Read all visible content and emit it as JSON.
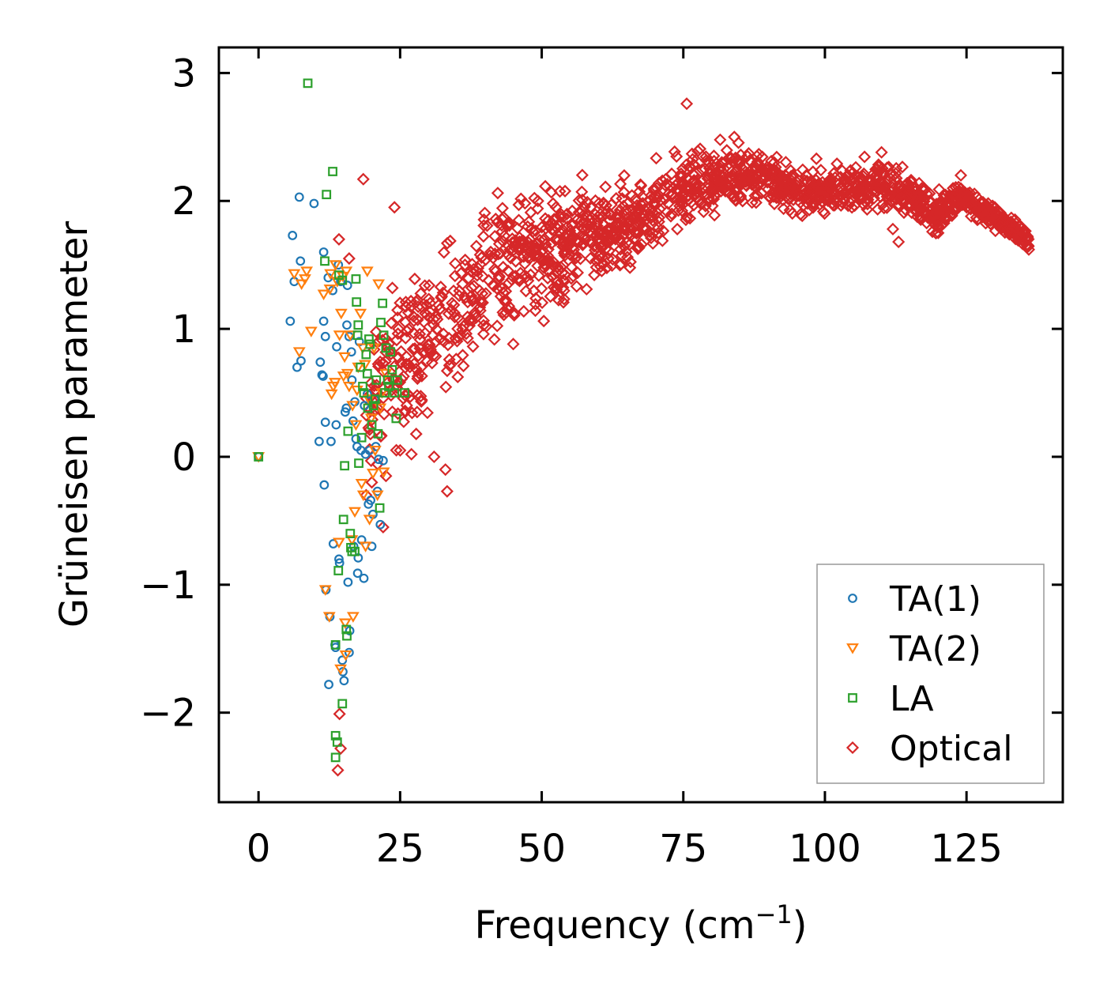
{
  "chart_data": {
    "type": "scatter",
    "title": "",
    "xlabel": "Frequency (cm",
    "xlabel_superscript": "−1",
    "xlabel_suffix": ")",
    "ylabel": "Grüneisen parameter",
    "xlim": [
      -7,
      142
    ],
    "ylim": [
      -2.7,
      3.2
    ],
    "x_ticks": [
      0,
      25,
      50,
      75,
      100,
      125
    ],
    "x_tick_labels": [
      "0",
      "25",
      "50",
      "75",
      "100",
      "125"
    ],
    "y_ticks": [
      -2,
      -1,
      0,
      1,
      2,
      3
    ],
    "y_tick_labels": [
      "−2",
      "−1",
      "0",
      "1",
      "2",
      "3"
    ],
    "grid": false,
    "legend_position": "bottom-right",
    "series": [
      {
        "name": "TA(1)",
        "marker": "circle",
        "color": "#1f77b4",
        "points": [
          [
            0,
            0
          ],
          [
            5.6,
            1.06
          ],
          [
            6,
            1.73
          ],
          [
            6.3,
            1.37
          ],
          [
            6.8,
            0.7
          ],
          [
            7.2,
            2.03
          ],
          [
            7.4,
            1.53
          ],
          [
            7.5,
            0.75
          ],
          [
            9.8,
            1.98
          ],
          [
            10.7,
            0.12
          ],
          [
            10.9,
            0.74
          ],
          [
            11.2,
            0.64
          ],
          [
            11.4,
            0.63
          ],
          [
            11.6,
            -0.22
          ],
          [
            11.8,
            0.27
          ],
          [
            11.5,
            1.06
          ],
          [
            11.8,
            0.94
          ],
          [
            11.5,
            1.6
          ],
          [
            11.9,
            -1.04
          ],
          [
            12.3,
            1.4
          ],
          [
            12.6,
            -1.25
          ],
          [
            12.4,
            -1.78
          ],
          [
            12.8,
            0.12
          ],
          [
            13.1,
            1.3
          ],
          [
            13.2,
            -0.68
          ],
          [
            13.5,
            -1.47
          ],
          [
            13.6,
            -1.49
          ],
          [
            13.7,
            0.25
          ],
          [
            13.8,
            0.86
          ],
          [
            14.1,
            1.5
          ],
          [
            14.2,
            -0.8
          ],
          [
            14.3,
            -0.83
          ],
          [
            14.5,
            1.37
          ],
          [
            14.8,
            -1.59
          ],
          [
            14.9,
            -1.68
          ],
          [
            15.1,
            -1.75
          ],
          [
            15.3,
            0.35
          ],
          [
            15.5,
            0.38
          ],
          [
            15.6,
            1.03
          ],
          [
            15.7,
            1.34
          ],
          [
            15.8,
            -0.98
          ],
          [
            16,
            0.94
          ],
          [
            16,
            -1.53
          ],
          [
            16.1,
            -1.36
          ],
          [
            16.4,
            0.82
          ],
          [
            16.5,
            0.6
          ],
          [
            16.7,
            0.28
          ],
          [
            16.8,
            -0.7
          ],
          [
            17,
            0.43
          ],
          [
            17.2,
            0.14
          ],
          [
            17.4,
            0.08
          ],
          [
            17.5,
            -0.91
          ],
          [
            17.6,
            -0.79
          ],
          [
            17.8,
            0.9
          ],
          [
            18.1,
            0.05
          ],
          [
            18.2,
            -0.65
          ],
          [
            18.6,
            -0.95
          ],
          [
            18.7,
            0.4
          ],
          [
            18.9,
            0.02
          ],
          [
            19.2,
            0.49
          ],
          [
            19.4,
            -0.37
          ],
          [
            19.6,
            0.05
          ],
          [
            19.8,
            -0.34
          ],
          [
            20,
            -0.7
          ],
          [
            20.2,
            -0.45
          ],
          [
            20.5,
            0.45
          ],
          [
            20.7,
            0.08
          ],
          [
            21,
            -0.27
          ],
          [
            21.2,
            -0.02
          ],
          [
            21.5,
            -0.53
          ],
          [
            22,
            -0.03
          ]
        ]
      },
      {
        "name": "TA(2)",
        "marker": "triangle-down",
        "color": "#ff7f0e",
        "points": [
          [
            0,
            0
          ],
          [
            6.3,
            1.43
          ],
          [
            7.2,
            0.82
          ],
          [
            7.6,
            1.35
          ],
          [
            8.2,
            1.39
          ],
          [
            8.5,
            1.45
          ],
          [
            9.3,
            0.98
          ],
          [
            11.8,
            -1.04
          ],
          [
            11.5,
            1.27
          ],
          [
            12.5,
            -1.25
          ],
          [
            12.6,
            1.31
          ],
          [
            12.7,
            1.43
          ],
          [
            12.9,
            0.49
          ],
          [
            13.2,
            0.55
          ],
          [
            13.5,
            0.58
          ],
          [
            13.6,
            1.5
          ],
          [
            13.9,
            1.37
          ],
          [
            14.2,
            -0.67
          ],
          [
            14.3,
            0.95
          ],
          [
            14.5,
            -1.66
          ],
          [
            14.6,
            1.12
          ],
          [
            14.9,
            1.41
          ],
          [
            15,
            0.63
          ],
          [
            15.2,
            0.78
          ],
          [
            15.3,
            -1.3
          ],
          [
            15.4,
            -1.55
          ],
          [
            15.5,
            1.45
          ],
          [
            15.7,
            0.65
          ],
          [
            16,
            0.55
          ],
          [
            16.2,
            0.95
          ],
          [
            16.5,
            -0.65
          ],
          [
            16.6,
            0.4
          ],
          [
            16.7,
            -1.25
          ],
          [
            17,
            -0.43
          ],
          [
            17.2,
            0.25
          ],
          [
            17.4,
            0.52
          ],
          [
            17.6,
            0.7
          ],
          [
            18,
            1.12
          ],
          [
            18.2,
            -0.21
          ],
          [
            18.4,
            0.85
          ],
          [
            18.5,
            -0.3
          ],
          [
            18.8,
            0.72
          ],
          [
            18.9,
            -0.7
          ],
          [
            19.2,
            1.45
          ],
          [
            19.5,
            0.45
          ],
          [
            19.6,
            -0.49
          ],
          [
            19.9,
            0.3
          ],
          [
            20.2,
            -0.13
          ],
          [
            20.4,
            0.85
          ],
          [
            20.6,
            0.05
          ],
          [
            21,
            -0.3
          ],
          [
            21.2,
            1.35
          ],
          [
            21.5,
            0.38
          ],
          [
            21.8,
            0.5
          ],
          [
            22.1,
            -0.12
          ],
          [
            22.5,
            0.65
          ]
        ]
      },
      {
        "name": "LA",
        "marker": "square",
        "color": "#2ca02c",
        "points": [
          [
            0,
            0
          ],
          [
            8.7,
            2.92
          ],
          [
            11.7,
            1.53
          ],
          [
            12,
            2.05
          ],
          [
            13.1,
            2.23
          ],
          [
            13.6,
            -1.47
          ],
          [
            13.6,
            -2.18
          ],
          [
            13.9,
            -2.23
          ],
          [
            13.6,
            -2.35
          ],
          [
            14.1,
            -0.89
          ],
          [
            14.2,
            1.42
          ],
          [
            14.8,
            1.38
          ],
          [
            14.8,
            -1.93
          ],
          [
            15,
            -0.49
          ],
          [
            15.2,
            -0.07
          ],
          [
            15.5,
            -1.35
          ],
          [
            15.6,
            -1.4
          ],
          [
            15.8,
            0.2
          ],
          [
            16.2,
            -0.6
          ],
          [
            16.3,
            -0.71
          ],
          [
            16.5,
            -0.74
          ],
          [
            17,
            -0.74
          ],
          [
            17.2,
            1.39
          ],
          [
            17.3,
            1.21
          ],
          [
            17.5,
            0.95
          ],
          [
            17.6,
            1.03
          ],
          [
            17.7,
            -0.05
          ],
          [
            18,
            0.7
          ],
          [
            18.2,
            0.15
          ],
          [
            18.4,
            0.55
          ],
          [
            18.6,
            0.5
          ],
          [
            19,
            0.8
          ],
          [
            19.2,
            0.65
          ],
          [
            19.3,
            0.38
          ],
          [
            19.5,
            0.92
          ],
          [
            19.7,
            0.88
          ],
          [
            20,
            0.25
          ],
          [
            20.3,
            0.4
          ],
          [
            20.6,
            0.45
          ],
          [
            20.8,
            0.6
          ],
          [
            21.1,
            0.18
          ],
          [
            21.4,
            -0.4
          ],
          [
            21.6,
            1.05
          ],
          [
            21.9,
            1.2
          ],
          [
            22.1,
            0.95
          ],
          [
            22.3,
            0.5
          ],
          [
            22.5,
            0.85
          ],
          [
            22.8,
            0.6
          ],
          [
            23,
            0.55
          ],
          [
            23.3,
            0.82
          ],
          [
            23.6,
            0.68
          ],
          [
            24,
            0.5
          ],
          [
            24.3,
            0.3
          ],
          [
            24.5,
            0.6
          ],
          [
            25.8,
            0.5
          ]
        ]
      },
      {
        "name": "Optical",
        "marker": "diamond",
        "color": "#d62728",
        "points": [
          [
            14,
            -2.45
          ],
          [
            14.3,
            -2.01
          ],
          [
            14.5,
            -2.28
          ],
          [
            14.2,
            1.7
          ],
          [
            16,
            1.55
          ],
          [
            18.5,
            2.17
          ],
          [
            19,
            -0.3
          ],
          [
            20,
            -0.2
          ],
          [
            22,
            -0.55
          ],
          [
            22.5,
            -0.15
          ],
          [
            24,
            1.95
          ],
          [
            25,
            0.05
          ],
          [
            27,
            0.02
          ],
          [
            28,
            0.35
          ],
          [
            31,
            0.0
          ],
          [
            33,
            -0.1
          ],
          [
            33.3,
            -0.27
          ],
          [
            75.6,
            2.76
          ],
          [
            84,
            2.5
          ],
          [
            88,
            2.35
          ],
          [
            95,
            2.15
          ],
          [
            98.5,
            2.33
          ],
          [
            105,
            2.18
          ],
          [
            110,
            2.38
          ],
          [
            112,
            1.78
          ],
          [
            113,
            1.68
          ],
          [
            120,
            1.75
          ],
          [
            124,
            2.2
          ],
          [
            130,
            1.95
          ],
          [
            136,
            1.62
          ]
        ],
        "band": {
          "x_range": [
            19,
            136
          ],
          "median": [
            [
              19,
              0.35
            ],
            [
              22,
              0.55
            ],
            [
              25,
              0.7
            ],
            [
              30,
              0.95
            ],
            [
              35,
              1.15
            ],
            [
              40,
              1.35
            ],
            [
              45,
              1.5
            ],
            [
              50,
              1.6
            ],
            [
              55,
              1.68
            ],
            [
              60,
              1.75
            ],
            [
              65,
              1.8
            ],
            [
              70,
              1.95
            ],
            [
              75,
              2.08
            ],
            [
              80,
              2.15
            ],
            [
              85,
              2.2
            ],
            [
              90,
              2.18
            ],
            [
              95,
              2.08
            ],
            [
              100,
              2.05
            ],
            [
              105,
              2.1
            ],
            [
              110,
              2.15
            ],
            [
              115,
              2.05
            ],
            [
              120,
              1.9
            ],
            [
              124,
              2.05
            ],
            [
              127,
              1.95
            ],
            [
              131,
              1.85
            ],
            [
              136,
              1.68
            ]
          ],
          "spread": [
            [
              19,
              0.5
            ],
            [
              25,
              0.8
            ],
            [
              30,
              0.75
            ],
            [
              40,
              0.7
            ],
            [
              50,
              0.55
            ],
            [
              60,
              0.4
            ],
            [
              70,
              0.4
            ],
            [
              80,
              0.3
            ],
            [
              90,
              0.25
            ],
            [
              100,
              0.2
            ],
            [
              110,
              0.22
            ],
            [
              120,
              0.2
            ],
            [
              124,
              0.12
            ],
            [
              136,
              0.1
            ]
          ],
          "point_count": 1700
        }
      }
    ]
  }
}
